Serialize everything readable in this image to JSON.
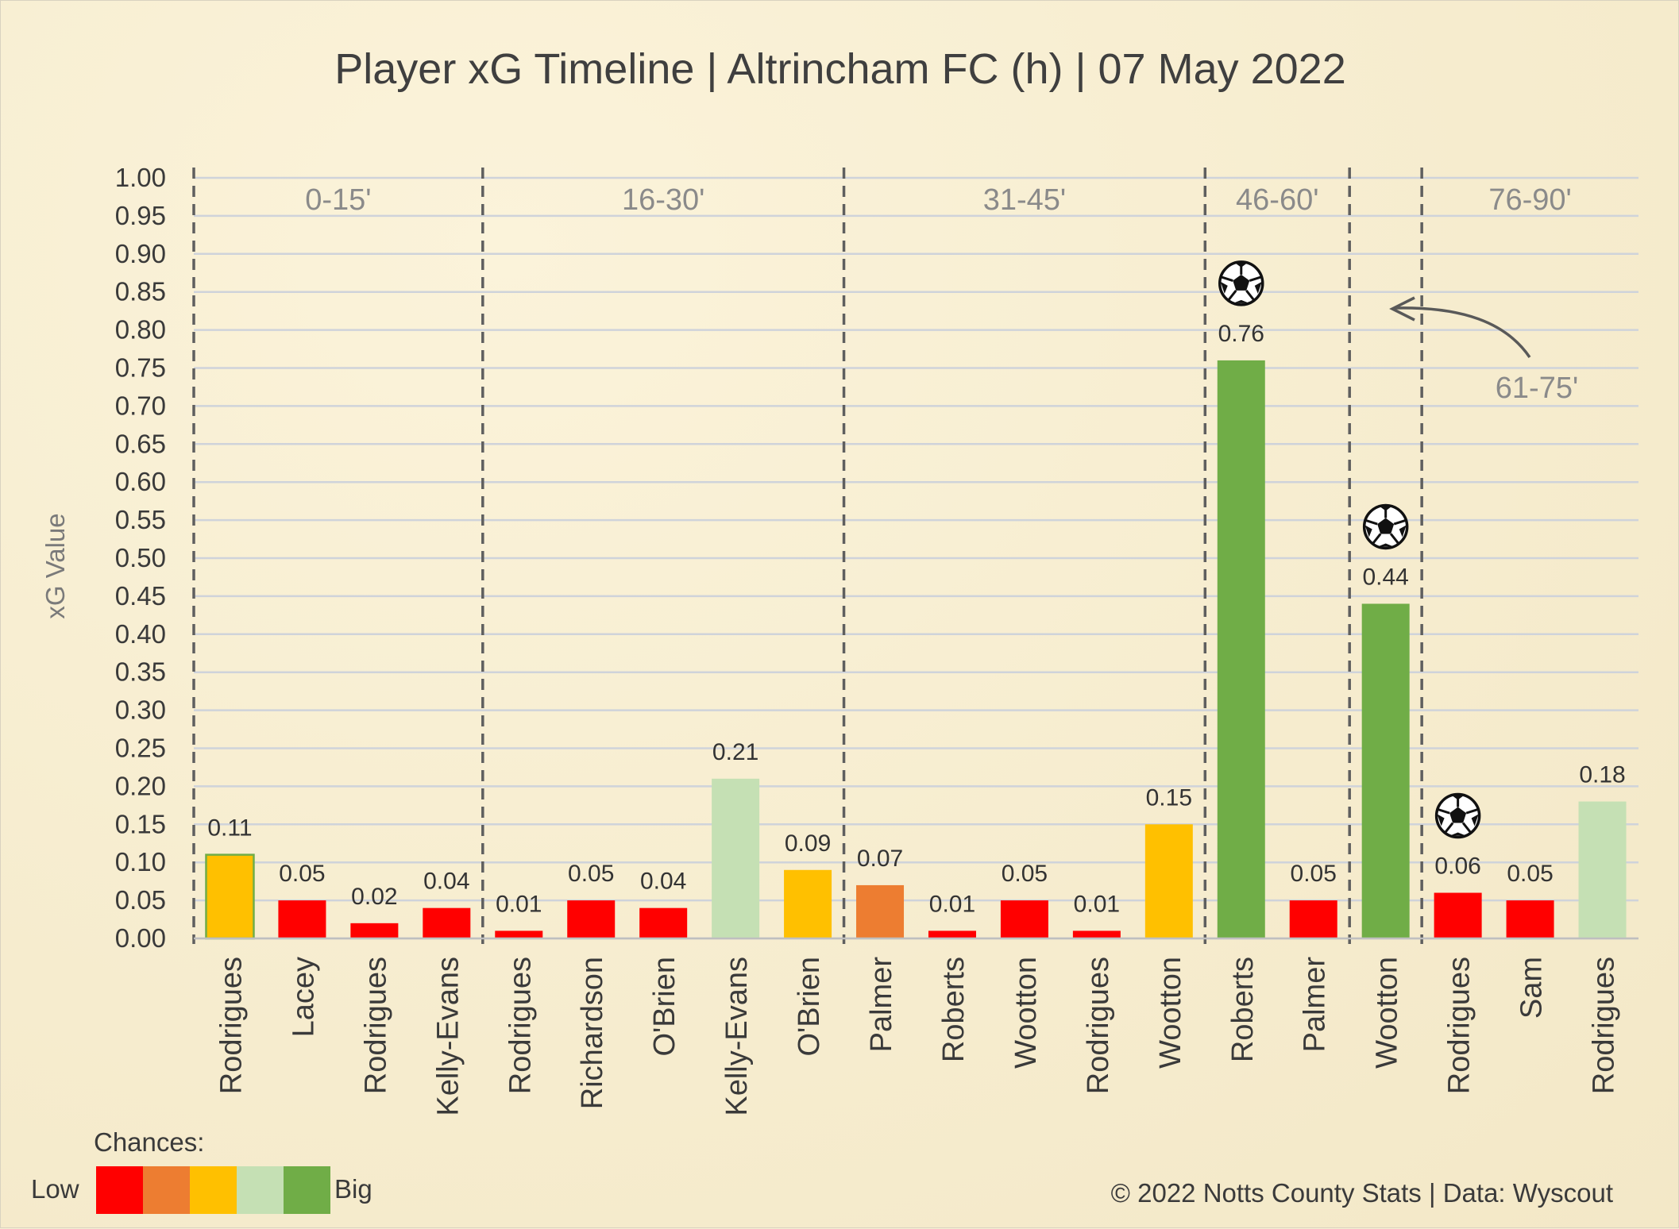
{
  "chart_data": {
    "type": "bar",
    "title": "Player xG Timeline | Altrincham FC (h) | 07 May 2022",
    "xlabel": "",
    "ylabel": "xG Value",
    "ylim": [
      0,
      1.0
    ],
    "yticks": [
      "0.00",
      "0.05",
      "0.10",
      "0.15",
      "0.20",
      "0.25",
      "0.30",
      "0.35",
      "0.40",
      "0.45",
      "0.50",
      "0.55",
      "0.60",
      "0.65",
      "0.70",
      "0.75",
      "0.80",
      "0.85",
      "0.90",
      "0.95",
      "1.00"
    ],
    "grid": true,
    "categories": [
      "Rodrigues",
      "Lacey",
      "Rodrigues",
      "Kelly-Evans",
      "Rodrigues",
      "Richardson",
      "O'Brien",
      "Kelly-Evans",
      "O'Brien",
      "Palmer",
      "Roberts",
      "Wootton",
      "Rodrigues",
      "Wootton",
      "Roberts",
      "Palmer",
      "Wootton",
      "Rodrigues",
      "Sam",
      "Rodrigues"
    ],
    "values": [
      0.11,
      0.05,
      0.02,
      0.04,
      0.01,
      0.05,
      0.04,
      0.21,
      0.09,
      0.07,
      0.01,
      0.05,
      0.01,
      0.15,
      0.76,
      0.05,
      0.44,
      0.06,
      0.05,
      0.18
    ],
    "value_labels": [
      "0.11",
      "0.05",
      "0.02",
      "0.04",
      "0.01",
      "0.05",
      "0.04",
      "0.21",
      "0.09",
      "0.07",
      "0.01",
      "0.05",
      "0.01",
      "0.15",
      "0.76",
      "0.05",
      "0.44",
      "0.06",
      "0.05",
      "0.18"
    ],
    "bar_colors": [
      "#ffc000",
      "#ff0000",
      "#ff0000",
      "#ff0000",
      "#ff0000",
      "#ff0000",
      "#ff0000",
      "#c5e0b4",
      "#ffc000",
      "#ed7d31",
      "#ff0000",
      "#ff0000",
      "#ff0000",
      "#ffc000",
      "#70ad47",
      "#ff0000",
      "#70ad47",
      "#ff0000",
      "#ff0000",
      "#c5e0b4"
    ],
    "goals": [
      14,
      16,
      17
    ],
    "goal_icon": "soccer-ball-icon",
    "periods": [
      {
        "label": "0-15'",
        "bars": [
          0,
          3
        ]
      },
      {
        "label": "16-30'",
        "bars": [
          4,
          8
        ]
      },
      {
        "label": "31-45'",
        "bars": [
          9,
          13
        ]
      },
      {
        "label": "46-60'",
        "bars": [
          14,
          15
        ]
      },
      {
        "label": "76-90'",
        "bars": [
          17,
          19
        ]
      }
    ],
    "annotation": {
      "label": "61-75'"
    }
  },
  "legend": {
    "title": "Chances:",
    "low_label": "Low",
    "high_label": "Big",
    "colors": [
      "#ff0000",
      "#ed7d31",
      "#ffc000",
      "#c5e0b4",
      "#70ad47"
    ]
  },
  "footer": "© 2022 Notts County Stats | Data: Wyscout"
}
